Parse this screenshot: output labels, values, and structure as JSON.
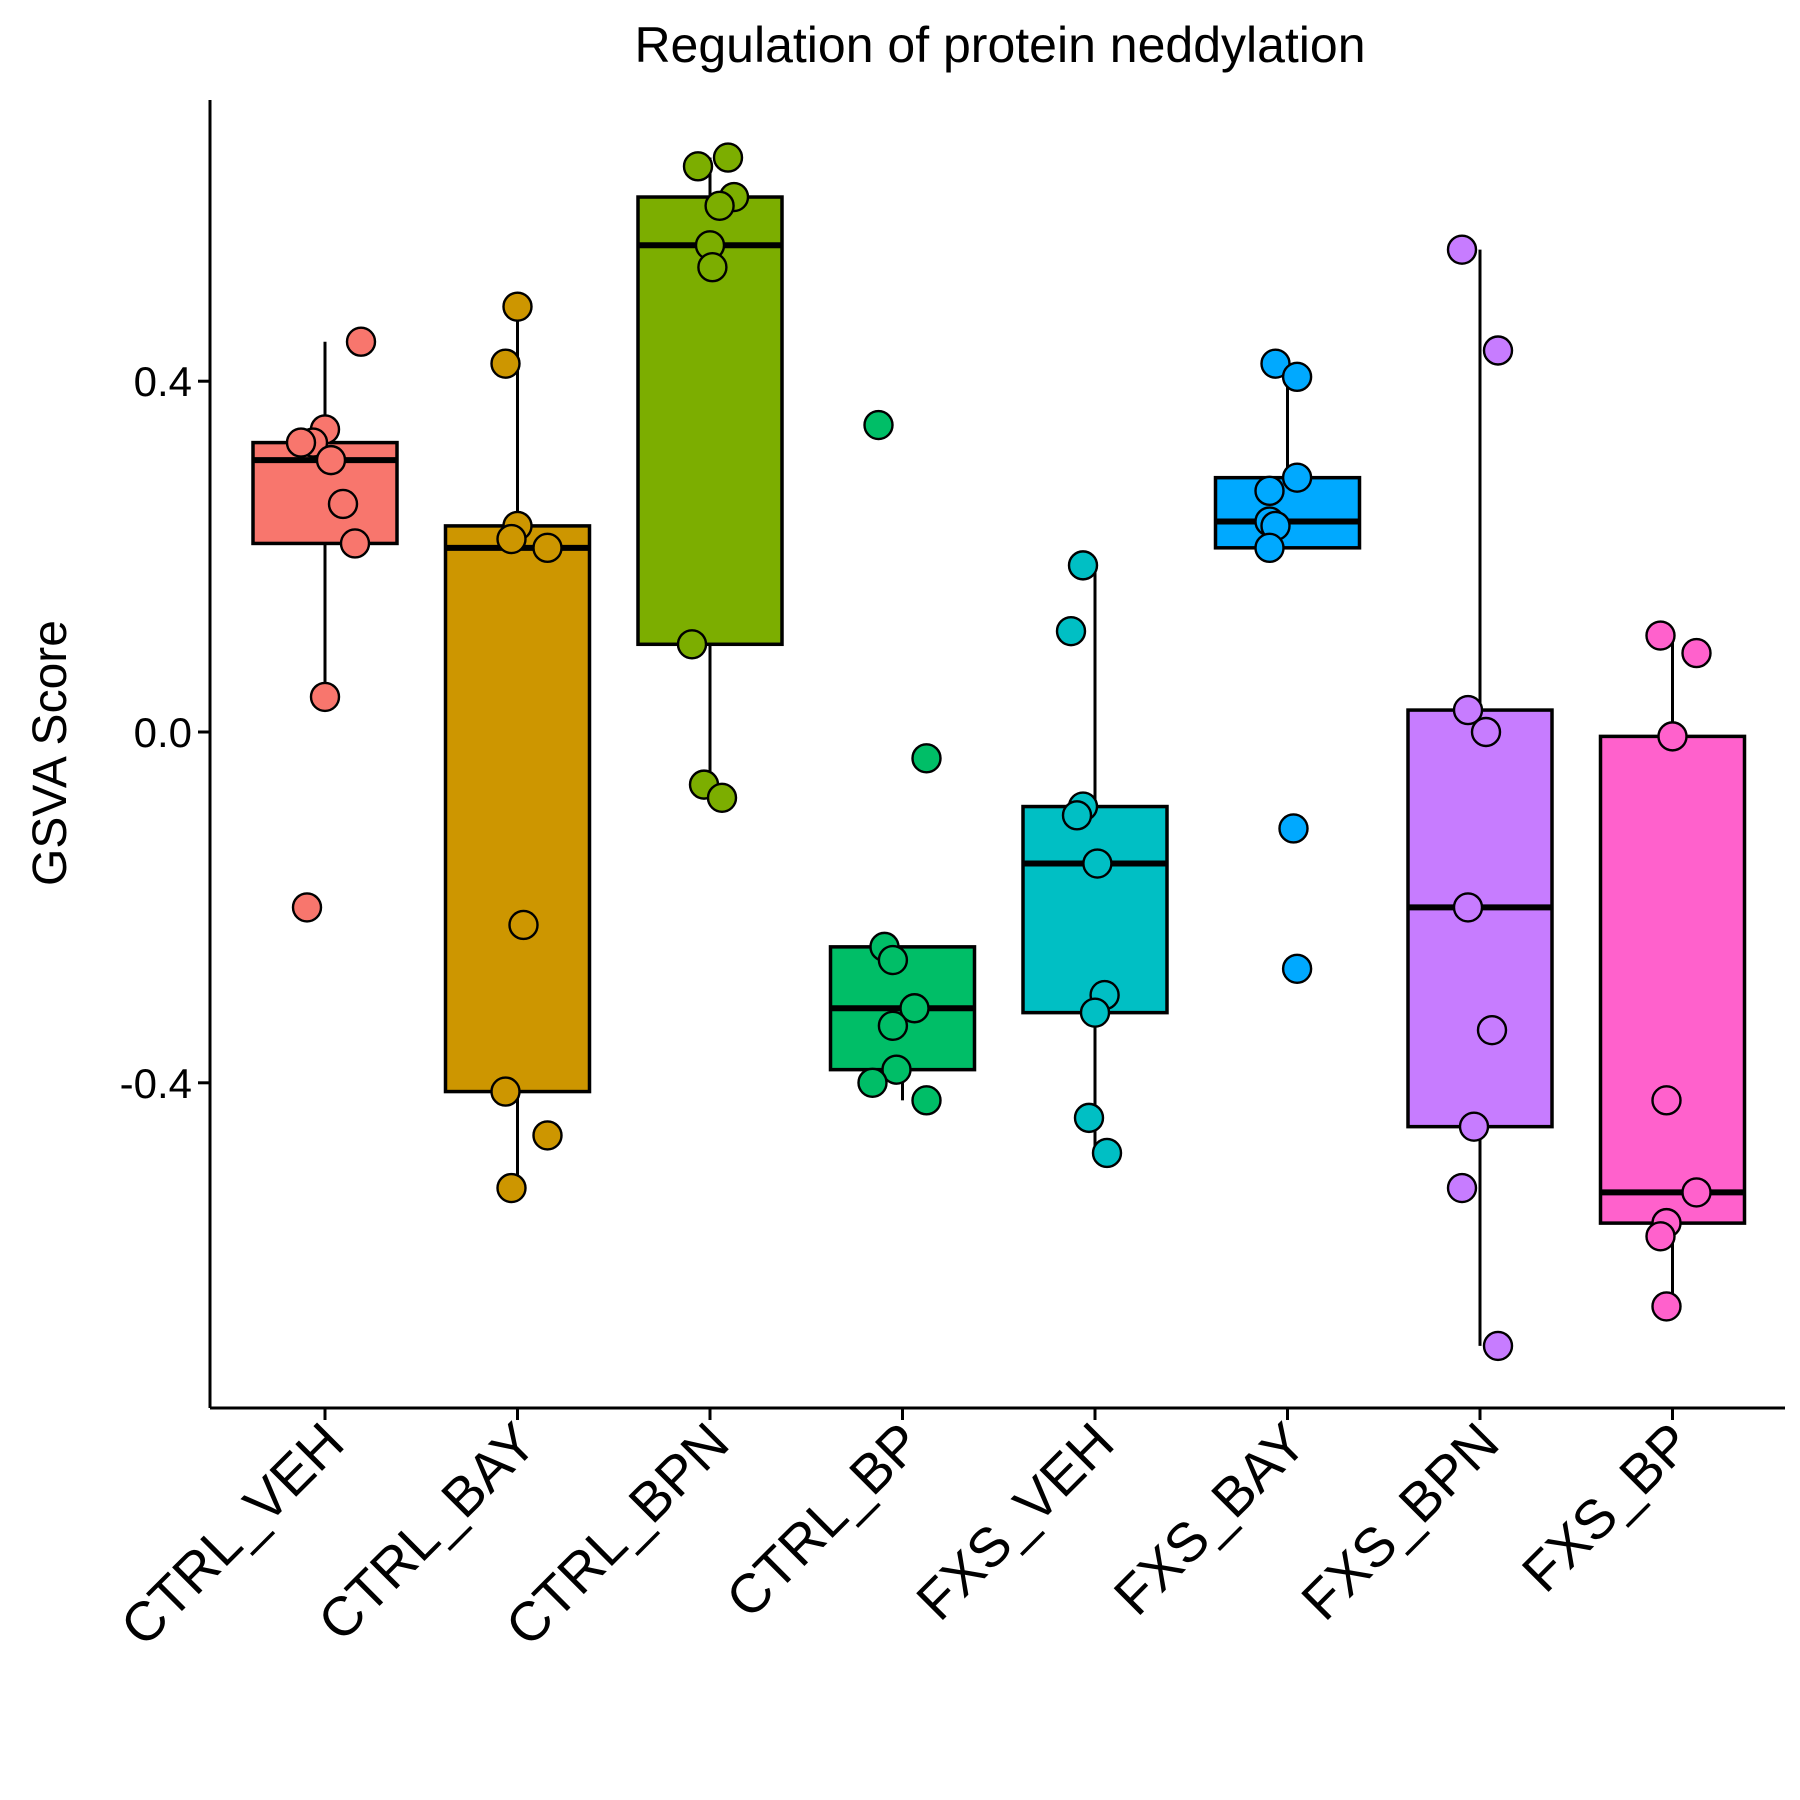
{
  "chart_data": {
    "type": "boxplot",
    "title": "Regulation of protein neddylation",
    "xlabel": "",
    "ylabel": "GSVA Score",
    "ylim": [
      -0.76,
      0.72
    ],
    "yticks": [
      0.4,
      0.0,
      -0.4
    ],
    "ytick_labels": [
      "0.4",
      "0.0",
      "-0.4"
    ],
    "grid": false,
    "legend": "none",
    "categories": [
      "CTRL_VEH",
      "CTRL_BAY",
      "CTRL_BPN",
      "CTRL_BP",
      "FXS_VEH",
      "FXS_BAY",
      "FXS_BPN",
      "FXS_BP"
    ],
    "series": [
      {
        "category": "CTRL_VEH",
        "color": "#F8766D",
        "stats": {
          "q1": 0.215,
          "median": 0.31,
          "q3": 0.33,
          "whisker_low": 0.04,
          "whisker_high": 0.445
        },
        "points": [
          [
            0.3,
            0.445
          ],
          [
            0.0,
            0.345
          ],
          [
            -0.1,
            0.33
          ],
          [
            -0.2,
            0.33
          ],
          [
            0.05,
            0.31
          ],
          [
            0.15,
            0.26
          ],
          [
            0.25,
            0.215
          ],
          [
            0.0,
            0.04
          ],
          [
            -0.15,
            -0.2
          ]
        ]
      },
      {
        "category": "CTRL_BAY",
        "color": "#CD9600",
        "stats": {
          "q1": -0.41,
          "median": 0.21,
          "q3": 0.235,
          "whisker_low": -0.52,
          "whisker_high": 0.485
        },
        "points": [
          [
            0.0,
            0.485
          ],
          [
            -0.1,
            0.42
          ],
          [
            0.0,
            0.235
          ],
          [
            -0.05,
            0.22
          ],
          [
            0.25,
            0.21
          ],
          [
            0.05,
            -0.22
          ],
          [
            -0.1,
            -0.41
          ],
          [
            0.25,
            -0.46
          ],
          [
            -0.05,
            -0.52
          ]
        ]
      },
      {
        "category": "CTRL_BPN",
        "color": "#7CAE00",
        "stats": {
          "q1": 0.1,
          "median": 0.555,
          "q3": 0.61,
          "whisker_low": -0.05,
          "whisker_high": 0.655
        },
        "points": [
          [
            -0.1,
            0.645
          ],
          [
            0.15,
            0.655
          ],
          [
            0.2,
            0.61
          ],
          [
            0.08,
            0.6
          ],
          [
            0.0,
            0.555
          ],
          [
            0.02,
            0.53
          ],
          [
            -0.15,
            0.1
          ],
          [
            -0.05,
            -0.06
          ],
          [
            0.1,
            -0.075
          ]
        ]
      },
      {
        "category": "CTRL_BP",
        "color": "#00BE67",
        "stats": {
          "q1": -0.385,
          "median": -0.315,
          "q3": -0.245,
          "whisker_low": -0.42,
          "whisker_high": -0.245
        },
        "points": [
          [
            -0.2,
            0.35
          ],
          [
            0.2,
            -0.03
          ],
          [
            -0.15,
            -0.245
          ],
          [
            -0.08,
            -0.26
          ],
          [
            0.1,
            -0.315
          ],
          [
            -0.08,
            -0.335
          ],
          [
            -0.05,
            -0.385
          ],
          [
            -0.25,
            -0.4
          ],
          [
            0.2,
            -0.42
          ]
        ]
      },
      {
        "category": "FXS_VEH",
        "color": "#00BFC4",
        "stats": {
          "q1": -0.32,
          "median": -0.15,
          "q3": -0.085,
          "whisker_low": -0.48,
          "whisker_high": 0.19
        },
        "points": [
          [
            -0.1,
            0.19
          ],
          [
            -0.2,
            0.115
          ],
          [
            -0.1,
            -0.085
          ],
          [
            -0.15,
            -0.095
          ],
          [
            0.02,
            -0.15
          ],
          [
            0.08,
            -0.3
          ],
          [
            0.0,
            -0.32
          ],
          [
            -0.05,
            -0.44
          ],
          [
            0.1,
            -0.48
          ]
        ]
      },
      {
        "category": "FXS_BAY",
        "color": "#00A9FF",
        "stats": {
          "q1": 0.21,
          "median": 0.24,
          "q3": 0.29,
          "whisker_low": 0.21,
          "whisker_high": 0.405
        },
        "points": [
          [
            -0.1,
            0.42
          ],
          [
            0.08,
            0.405
          ],
          [
            0.08,
            0.29
          ],
          [
            -0.15,
            0.275
          ],
          [
            -0.15,
            0.24
          ],
          [
            -0.1,
            0.235
          ],
          [
            -0.15,
            0.21
          ],
          [
            0.05,
            -0.11
          ],
          [
            0.08,
            -0.27
          ]
        ]
      },
      {
        "category": "FXS_BPN",
        "color": "#C77CFF",
        "stats": {
          "q1": -0.45,
          "median": -0.2,
          "q3": 0.025,
          "whisker_low": -0.7,
          "whisker_high": 0.55
        },
        "points": [
          [
            -0.15,
            0.55
          ],
          [
            0.15,
            0.435
          ],
          [
            -0.1,
            0.025
          ],
          [
            0.05,
            0.0
          ],
          [
            -0.1,
            -0.2
          ],
          [
            0.1,
            -0.34
          ],
          [
            -0.05,
            -0.45
          ],
          [
            -0.15,
            -0.52
          ],
          [
            0.15,
            -0.7
          ]
        ]
      },
      {
        "category": "FXS_BP",
        "color": "#FF61CC",
        "stats": {
          "q1": -0.56,
          "median": -0.525,
          "q3": -0.005,
          "whisker_low": -0.66,
          "whisker_high": 0.11
        },
        "points": [
          [
            -0.1,
            0.11
          ],
          [
            0.2,
            0.09
          ],
          [
            0.0,
            -0.005
          ],
          [
            -0.05,
            -0.42
          ],
          [
            0.2,
            -0.525
          ],
          [
            -0.05,
            -0.56
          ],
          [
            -0.1,
            -0.575
          ],
          [
            -0.05,
            -0.655
          ]
        ]
      }
    ]
  }
}
